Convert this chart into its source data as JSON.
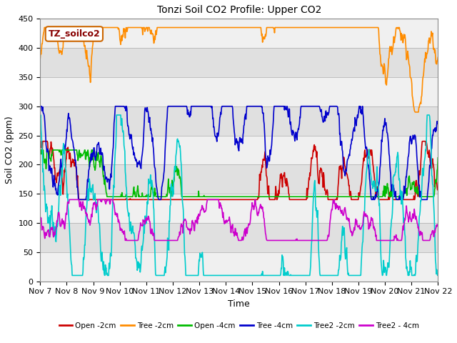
{
  "title": "Tonzi Soil CO2 Profile: Upper CO2",
  "xlabel": "Time",
  "ylabel": "Soil CO2 (ppm)",
  "ylim": [
    0,
    450
  ],
  "yticks": [
    0,
    50,
    100,
    150,
    200,
    250,
    300,
    350,
    400,
    450
  ],
  "legend_label": "TZ_soilco2",
  "series": [
    {
      "name": "Open -2cm",
      "color": "#cc0000",
      "lw": 1.2
    },
    {
      "name": "Tree -2cm",
      "color": "#ff8c00",
      "lw": 1.2
    },
    {
      "name": "Open -4cm",
      "color": "#00bb00",
      "lw": 1.2
    },
    {
      "name": "Tree -4cm",
      "color": "#0000cc",
      "lw": 1.2
    },
    {
      "name": "Tree2 -2cm",
      "color": "#00cccc",
      "lw": 1.2
    },
    {
      "name": "Tree2 - 4cm",
      "color": "#cc00cc",
      "lw": 1.2
    }
  ],
  "x_tick_labels": [
    "Nov 7",
    "Nov 8",
    "Nov 9",
    "Nov 10",
    "Nov 11",
    "Nov 12",
    "Nov 13",
    "Nov 14",
    "Nov 15",
    "Nov 16",
    "Nov 17",
    "Nov 18",
    "Nov 19",
    "Nov 20",
    "Nov 21",
    "Nov 22"
  ],
  "band_colors": [
    "#f0f0f0",
    "#e0e0e0"
  ],
  "figsize": [
    6.4,
    4.8
  ],
  "dpi": 100
}
